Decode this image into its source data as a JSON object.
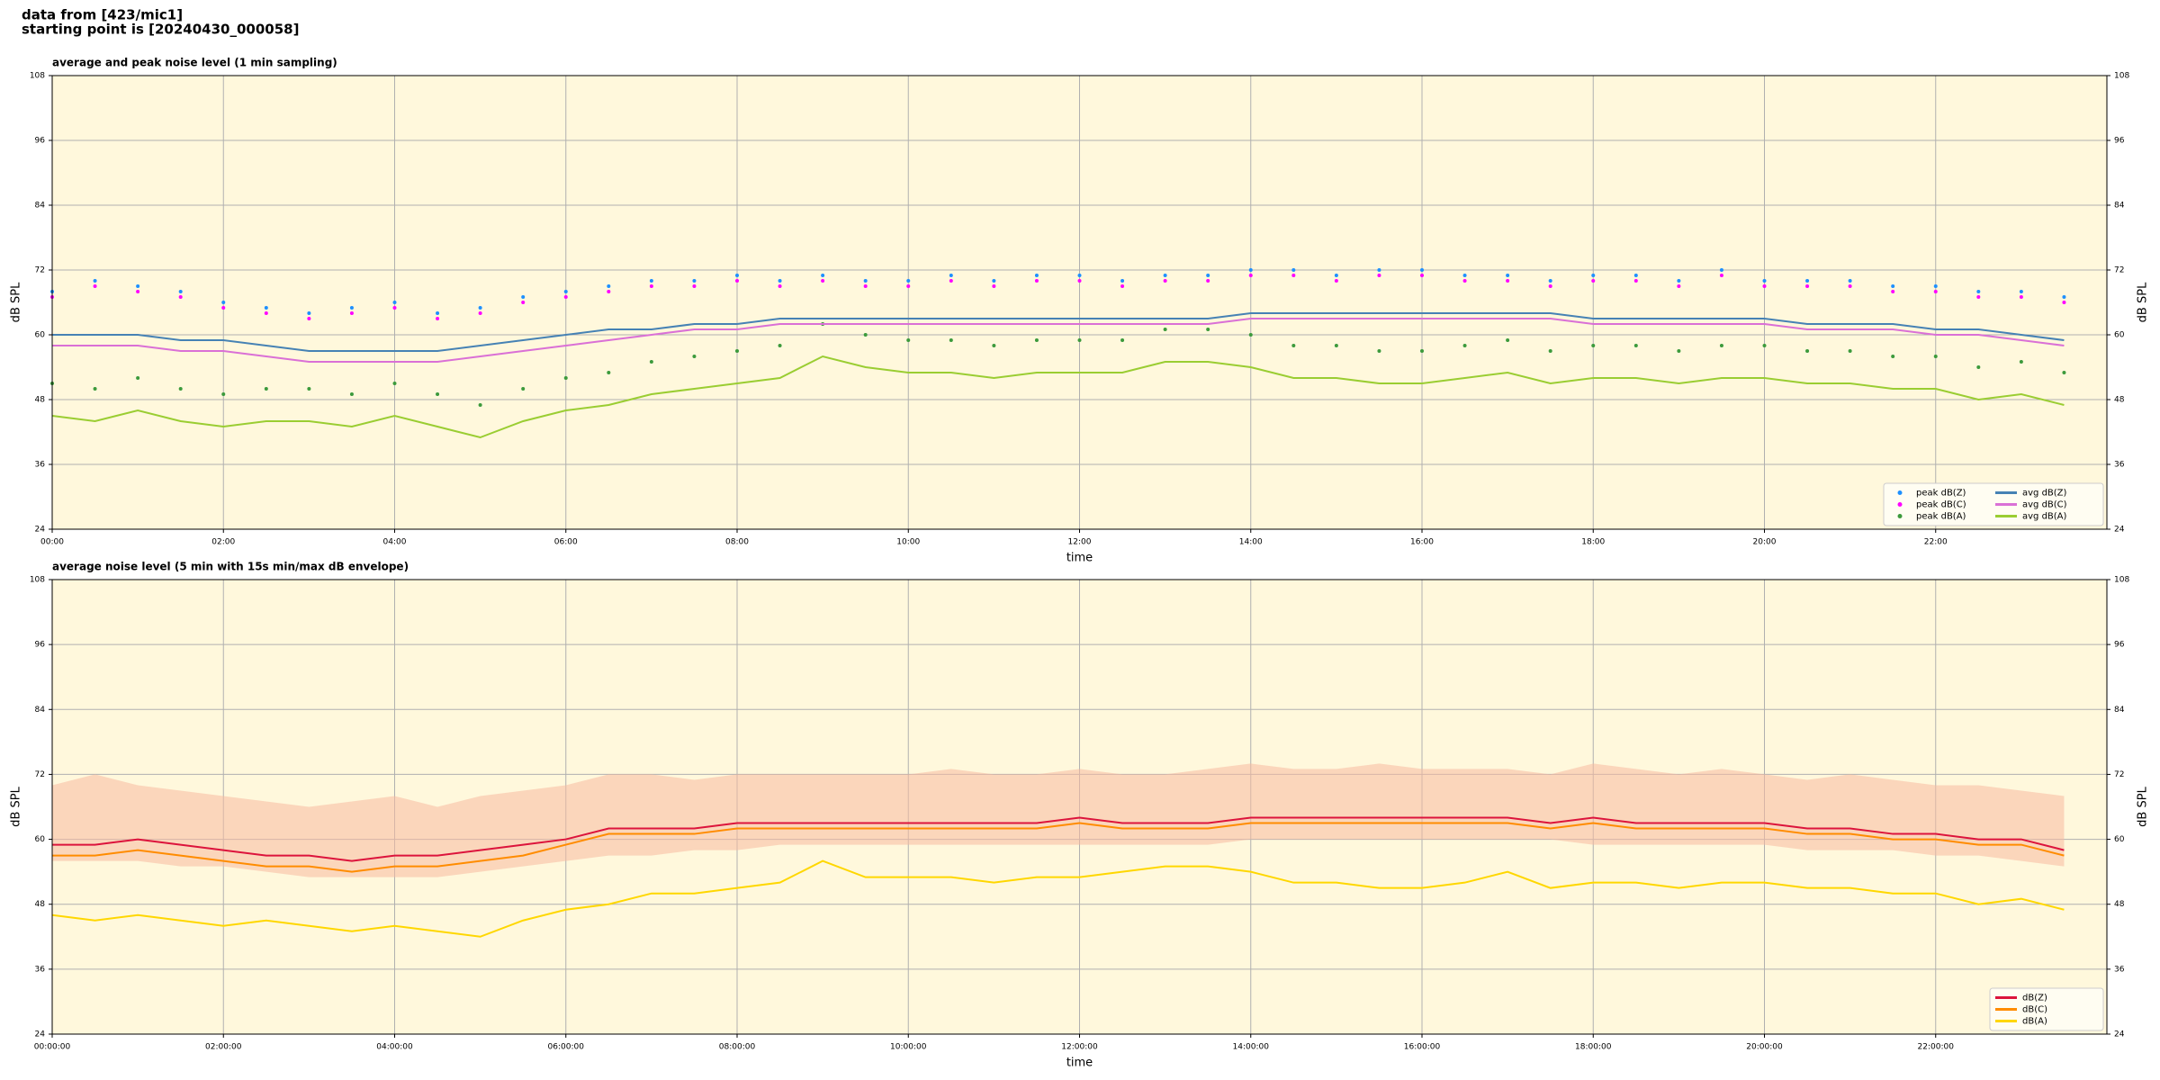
{
  "header": {
    "lines": [
      "data from [423/mic1]",
      "starting point is [20240430_000058]"
    ]
  },
  "chart_data": [
    {
      "type": "line",
      "title": "average and peak noise level (1 min sampling)",
      "x_label": "time",
      "y_label": "dB SPL",
      "xlim": [
        0,
        24
      ],
      "xticks": [
        {
          "value": 0,
          "label": "00:00"
        },
        {
          "value": 2,
          "label": "02:00"
        },
        {
          "value": 4,
          "label": "04:00"
        },
        {
          "value": 6,
          "label": "06:00"
        },
        {
          "value": 8,
          "label": "08:00"
        },
        {
          "value": 10,
          "label": "10:00"
        },
        {
          "value": 12,
          "label": "12:00"
        },
        {
          "value": 14,
          "label": "14:00"
        },
        {
          "value": 16,
          "label": "16:00"
        },
        {
          "value": 18,
          "label": "18:00"
        },
        {
          "value": 20,
          "label": "20:00"
        },
        {
          "value": 22,
          "label": "22:00"
        }
      ],
      "ylim": [
        24,
        108
      ],
      "yticks": [
        24,
        36,
        48,
        60,
        72,
        84,
        96,
        108
      ],
      "grid": true,
      "legend": "lower right",
      "legend_columns": 2,
      "x": [
        0,
        0.5,
        1,
        1.5,
        2,
        2.5,
        3,
        3.5,
        4,
        4.5,
        5,
        5.5,
        6,
        6.5,
        7,
        7.5,
        8,
        8.5,
        9,
        9.5,
        10,
        10.5,
        11,
        11.5,
        12,
        12.5,
        13,
        13.5,
        14,
        14.5,
        15,
        15.5,
        16,
        16.5,
        17,
        17.5,
        18,
        18.5,
        19,
        19.5,
        20,
        20.5,
        21,
        21.5,
        22,
        22.5,
        23,
        23.5
      ],
      "series": [
        {
          "name": "peak dB(Z)",
          "style": "dots",
          "color": "#1e90ff",
          "values": [
            68,
            70,
            69,
            68,
            66,
            65,
            64,
            65,
            66,
            64,
            65,
            67,
            68,
            69,
            70,
            70,
            71,
            70,
            71,
            70,
            70,
            71,
            70,
            71,
            71,
            70,
            71,
            71,
            72,
            72,
            71,
            72,
            72,
            71,
            71,
            70,
            71,
            71,
            70,
            72,
            70,
            70,
            70,
            69,
            69,
            68,
            68,
            67
          ]
        },
        {
          "name": "peak dB(C)",
          "style": "dots",
          "color": "#ff00ff",
          "values": [
            67,
            69,
            68,
            67,
            65,
            64,
            63,
            64,
            65,
            63,
            64,
            66,
            67,
            68,
            69,
            69,
            70,
            69,
            70,
            69,
            69,
            70,
            69,
            70,
            70,
            69,
            70,
            70,
            71,
            71,
            70,
            71,
            71,
            70,
            70,
            69,
            70,
            70,
            69,
            71,
            69,
            69,
            69,
            68,
            68,
            67,
            67,
            66
          ]
        },
        {
          "name": "peak dB(A)",
          "style": "dots",
          "color": "#3c9a3c",
          "values": [
            51,
            50,
            52,
            50,
            49,
            50,
            50,
            49,
            51,
            49,
            47,
            50,
            52,
            53,
            55,
            56,
            57,
            58,
            62,
            60,
            59,
            59,
            58,
            59,
            59,
            59,
            61,
            61,
            60,
            58,
            58,
            57,
            57,
            58,
            59,
            57,
            58,
            58,
            57,
            58,
            58,
            57,
            57,
            56,
            56,
            54,
            55,
            53
          ]
        },
        {
          "name": "avg dB(Z)",
          "style": "line",
          "color": "#4682b4",
          "values": [
            60,
            60,
            60,
            59,
            59,
            58,
            57,
            57,
            57,
            57,
            58,
            59,
            60,
            61,
            61,
            62,
            62,
            63,
            63,
            63,
            63,
            63,
            63,
            63,
            63,
            63,
            63,
            63,
            64,
            64,
            64,
            64,
            64,
            64,
            64,
            64,
            63,
            63,
            63,
            63,
            63,
            62,
            62,
            62,
            61,
            61,
            60,
            59
          ]
        },
        {
          "name": "avg dB(C)",
          "style": "line",
          "color": "#da70d6",
          "values": [
            58,
            58,
            58,
            57,
            57,
            56,
            55,
            55,
            55,
            55,
            56,
            57,
            58,
            59,
            60,
            61,
            61,
            62,
            62,
            62,
            62,
            62,
            62,
            62,
            62,
            62,
            62,
            62,
            63,
            63,
            63,
            63,
            63,
            63,
            63,
            63,
            62,
            62,
            62,
            62,
            62,
            61,
            61,
            61,
            60,
            60,
            59,
            58
          ]
        },
        {
          "name": "avg dB(A)",
          "style": "line",
          "color": "#9acd32",
          "values": [
            45,
            44,
            46,
            44,
            43,
            44,
            44,
            43,
            45,
            43,
            41,
            44,
            46,
            47,
            49,
            50,
            51,
            52,
            56,
            54,
            53,
            53,
            52,
            53,
            53,
            53,
            55,
            55,
            54,
            52,
            52,
            51,
            51,
            52,
            53,
            51,
            52,
            52,
            51,
            52,
            52,
            51,
            51,
            50,
            50,
            48,
            49,
            47
          ]
        }
      ]
    },
    {
      "type": "line",
      "title": "average noise level (5 min with 15s min/max dB envelope)",
      "x_label": "time",
      "y_label": "dB SPL",
      "xlim": [
        0,
        24
      ],
      "xticks": [
        {
          "value": 0,
          "label": "00:00:00"
        },
        {
          "value": 2,
          "label": "02:00:00"
        },
        {
          "value": 4,
          "label": "04:00:00"
        },
        {
          "value": 6,
          "label": "06:00:00"
        },
        {
          "value": 8,
          "label": "08:00:00"
        },
        {
          "value": 10,
          "label": "10:00:00"
        },
        {
          "value": 12,
          "label": "12:00:00"
        },
        {
          "value": 14,
          "label": "14:00:00"
        },
        {
          "value": 16,
          "label": "16:00:00"
        },
        {
          "value": 18,
          "label": "18:00:00"
        },
        {
          "value": 20,
          "label": "20:00:00"
        },
        {
          "value": 22,
          "label": "22:00:00"
        }
      ],
      "ylim": [
        24,
        108
      ],
      "yticks": [
        24,
        36,
        48,
        60,
        72,
        84,
        96,
        108
      ],
      "grid": true,
      "legend": "lower right",
      "legend_columns": 1,
      "x": [
        0,
        0.5,
        1,
        1.5,
        2,
        2.5,
        3,
        3.5,
        4,
        4.5,
        5,
        5.5,
        6,
        6.5,
        7,
        7.5,
        8,
        8.5,
        9,
        9.5,
        10,
        10.5,
        11,
        11.5,
        12,
        12.5,
        13,
        13.5,
        14,
        14.5,
        15,
        15.5,
        16,
        16.5,
        17,
        17.5,
        18,
        18.5,
        19,
        19.5,
        20,
        20.5,
        21,
        21.5,
        22,
        22.5,
        23,
        23.5
      ],
      "band": {
        "color": "#f7b9a0",
        "low": [
          56,
          56,
          56,
          55,
          55,
          54,
          53,
          53,
          53,
          53,
          54,
          55,
          56,
          57,
          57,
          58,
          58,
          59,
          59,
          59,
          59,
          59,
          59,
          59,
          59,
          59,
          59,
          59,
          60,
          60,
          60,
          60,
          60,
          60,
          60,
          60,
          59,
          59,
          59,
          59,
          59,
          58,
          58,
          58,
          57,
          57,
          56,
          55
        ],
        "high": [
          70,
          72,
          70,
          69,
          68,
          67,
          66,
          67,
          68,
          66,
          68,
          69,
          70,
          72,
          72,
          71,
          72,
          72,
          72,
          72,
          72,
          73,
          72,
          72,
          73,
          72,
          72,
          73,
          74,
          73,
          73,
          74,
          73,
          73,
          73,
          72,
          74,
          73,
          72,
          73,
          72,
          71,
          72,
          71,
          70,
          70,
          69,
          68
        ]
      },
      "series": [
        {
          "name": "dB(Z)",
          "style": "line",
          "color": "#dc143c",
          "values": [
            59,
            59,
            60,
            59,
            58,
            57,
            57,
            56,
            57,
            57,
            58,
            59,
            60,
            62,
            62,
            62,
            63,
            63,
            63,
            63,
            63,
            63,
            63,
            63,
            64,
            63,
            63,
            63,
            64,
            64,
            64,
            64,
            64,
            64,
            64,
            63,
            64,
            63,
            63,
            63,
            63,
            62,
            62,
            61,
            61,
            60,
            60,
            58
          ]
        },
        {
          "name": "dB(C)",
          "style": "line",
          "color": "#ff8c00",
          "values": [
            57,
            57,
            58,
            57,
            56,
            55,
            55,
            54,
            55,
            55,
            56,
            57,
            59,
            61,
            61,
            61,
            62,
            62,
            62,
            62,
            62,
            62,
            62,
            62,
            63,
            62,
            62,
            62,
            63,
            63,
            63,
            63,
            63,
            63,
            63,
            62,
            63,
            62,
            62,
            62,
            62,
            61,
            61,
            60,
            60,
            59,
            59,
            57
          ]
        },
        {
          "name": "dB(A)",
          "style": "line",
          "color": "#ffd700",
          "values": [
            46,
            45,
            46,
            45,
            44,
            45,
            44,
            43,
            44,
            43,
            42,
            45,
            47,
            48,
            50,
            50,
            51,
            52,
            56,
            53,
            53,
            53,
            52,
            53,
            53,
            54,
            55,
            55,
            54,
            52,
            52,
            51,
            51,
            52,
            54,
            51,
            52,
            52,
            51,
            52,
            52,
            51,
            51,
            50,
            50,
            48,
            49,
            47
          ]
        }
      ]
    }
  ]
}
